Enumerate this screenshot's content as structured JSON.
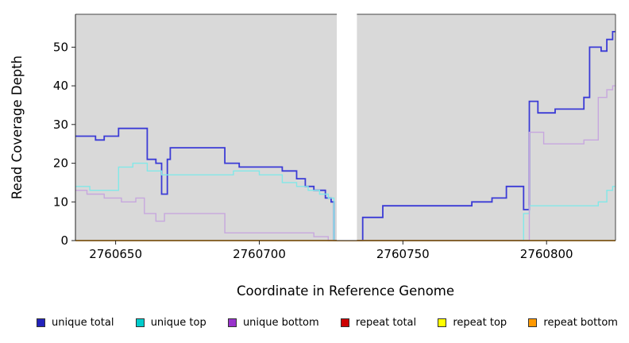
{
  "chart_data": {
    "type": "line",
    "title": "",
    "xlabel": "Coordinate in Reference Genome",
    "ylabel": "Read Coverage Depth",
    "xlim": [
      2760636,
      2760824
    ],
    "ylim": [
      0,
      58.5
    ],
    "x_ticks": [
      2760650,
      2760700,
      2760750,
      2760800
    ],
    "y_ticks": [
      0,
      10,
      20,
      30,
      40,
      50
    ],
    "plot_bg": "#d9d9d9",
    "grid": "off",
    "legend_position": "bottom",
    "step_mode": "after",
    "gap_region": {
      "from": 2760727,
      "to": 2760734
    },
    "series": [
      {
        "name": "unique total",
        "legend_color": "#2222bb",
        "line_color": "#3b3bd6",
        "line_width": 1.8,
        "steps": [
          [
            2760636,
            27
          ],
          [
            2760643,
            26
          ],
          [
            2760646,
            27
          ],
          [
            2760651,
            29
          ],
          [
            2760661,
            21
          ],
          [
            2760664,
            20
          ],
          [
            2760666,
            12
          ],
          [
            2760668,
            21
          ],
          [
            2760669,
            24
          ],
          [
            2760688,
            20
          ],
          [
            2760693,
            19
          ],
          [
            2760708,
            18
          ],
          [
            2760713,
            16
          ],
          [
            2760716,
            14
          ],
          [
            2760719,
            13
          ],
          [
            2760723,
            11
          ],
          [
            2760725,
            10
          ],
          [
            2760726,
            0
          ],
          [
            2760736,
            6
          ],
          [
            2760743,
            9
          ],
          [
            2760774,
            10
          ],
          [
            2760781,
            11
          ],
          [
            2760786,
            14
          ],
          [
            2760792,
            8
          ],
          [
            2760794,
            36
          ],
          [
            2760797,
            33
          ],
          [
            2760803,
            34
          ],
          [
            2760813,
            37
          ],
          [
            2760815,
            50
          ],
          [
            2760819,
            49
          ],
          [
            2760821,
            52
          ],
          [
            2760823,
            54
          ]
        ]
      },
      {
        "name": "unique top",
        "legend_color": "#00cccc",
        "line_color": "#82e8e8",
        "line_width": 1.4,
        "steps": [
          [
            2760636,
            14
          ],
          [
            2760641,
            13
          ],
          [
            2760651,
            19
          ],
          [
            2760656,
            20
          ],
          [
            2760661,
            18
          ],
          [
            2760666,
            17
          ],
          [
            2760691,
            18
          ],
          [
            2760700,
            17
          ],
          [
            2760708,
            15
          ],
          [
            2760713,
            14
          ],
          [
            2760717,
            13
          ],
          [
            2760721,
            12
          ],
          [
            2760724,
            11
          ],
          [
            2760726,
            0
          ],
          [
            2760792,
            7
          ],
          [
            2760794,
            9
          ],
          [
            2760815,
            9
          ],
          [
            2760818,
            10
          ],
          [
            2760821,
            13
          ],
          [
            2760823,
            14
          ]
        ]
      },
      {
        "name": "unique bottom",
        "legend_color": "#9933cc",
        "line_color": "#c7a7de",
        "line_width": 1.4,
        "steps": [
          [
            2760636,
            13
          ],
          [
            2760640,
            12
          ],
          [
            2760646,
            11
          ],
          [
            2760652,
            10
          ],
          [
            2760657,
            11
          ],
          [
            2760660,
            7
          ],
          [
            2760664,
            5
          ],
          [
            2760667,
            7
          ],
          [
            2760688,
            2
          ],
          [
            2760719,
            1
          ],
          [
            2760724,
            0
          ],
          [
            2760794,
            28
          ],
          [
            2760799,
            25
          ],
          [
            2760813,
            26
          ],
          [
            2760818,
            37
          ],
          [
            2760821,
            39
          ],
          [
            2760823,
            40
          ]
        ]
      },
      {
        "name": "repeat total",
        "legend_color": "#cc0000",
        "line_color": "#cc0000",
        "line_width": 1.2,
        "steps": [
          [
            2760636,
            0
          ]
        ]
      },
      {
        "name": "repeat top",
        "legend_color": "#ffff00",
        "line_color": "#ffff00",
        "line_width": 1.2,
        "steps": [
          [
            2760636,
            0
          ]
        ]
      },
      {
        "name": "repeat bottom",
        "legend_color": "#ff9900",
        "line_color": "#ff9900",
        "line_width": 1.6,
        "steps": [
          [
            2760636,
            0
          ]
        ]
      }
    ]
  }
}
